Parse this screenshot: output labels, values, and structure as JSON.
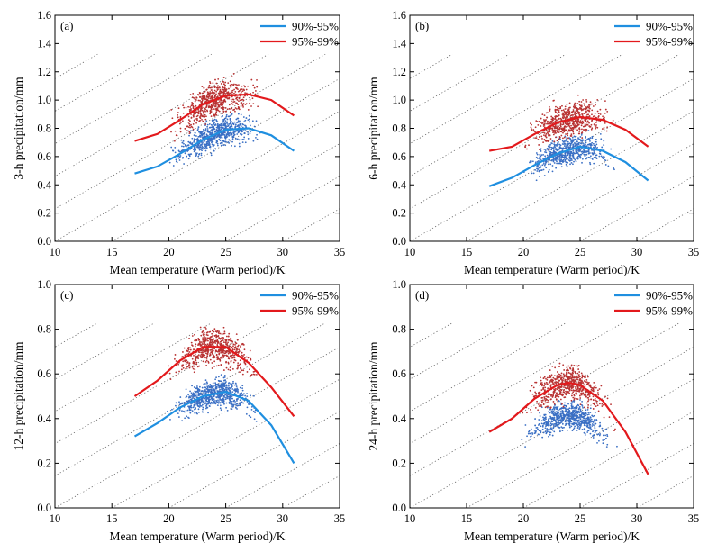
{
  "chart_data": [
    {
      "panel_label": "(a)",
      "type": "scatter",
      "xlabel": "Mean temperature (Warm period)/K",
      "ylabel": "3-h precipitation/mm",
      "xlim": [
        10,
        35
      ],
      "ylim": [
        0,
        1.6
      ],
      "xticks": [
        "10",
        "15",
        "20",
        "25",
        "30",
        "35"
      ],
      "yticks": [
        "0.0",
        "0.2",
        "0.4",
        "0.6",
        "0.8",
        "1.0",
        "1.2",
        "1.4",
        "1.6"
      ],
      "grid": "diagonal dotted lines",
      "legend_position": "top-right",
      "series": [
        {
          "name": "90%-95%",
          "color": "#1f8fe0",
          "kind": "fit-line",
          "x": [
            17,
            19,
            21,
            23,
            25,
            27,
            29,
            31
          ],
          "y": [
            0.48,
            0.53,
            0.62,
            0.72,
            0.79,
            0.8,
            0.75,
            0.64
          ]
        },
        {
          "name": "95%-99%",
          "color": "#e3191c",
          "kind": "fit-line",
          "x": [
            17,
            19,
            21,
            23,
            25,
            27,
            29,
            31
          ],
          "y": [
            0.71,
            0.76,
            0.86,
            0.97,
            1.03,
            1.04,
            1.0,
            0.89
          ]
        }
      ]
    },
    {
      "panel_label": "(b)",
      "type": "scatter",
      "xlabel": "Mean temperature (Warm period)/K",
      "ylabel": "6-h precipitation/mm",
      "xlim": [
        10,
        35
      ],
      "ylim": [
        0,
        1.6
      ],
      "xticks": [
        "10",
        "15",
        "20",
        "25",
        "30",
        "35"
      ],
      "yticks": [
        "0.0",
        "0.2",
        "0.4",
        "0.6",
        "0.8",
        "1.0",
        "1.2",
        "1.4",
        "1.6"
      ],
      "grid": "diagonal dotted lines",
      "legend_position": "top-right",
      "series": [
        {
          "name": "90%-95%",
          "color": "#1f8fe0",
          "kind": "fit-line",
          "x": [
            17,
            19,
            21,
            23,
            25,
            27,
            29,
            31
          ],
          "y": [
            0.39,
            0.45,
            0.54,
            0.62,
            0.67,
            0.64,
            0.56,
            0.43
          ]
        },
        {
          "name": "95%-99%",
          "color": "#e3191c",
          "kind": "fit-line",
          "x": [
            17,
            19,
            21,
            23,
            25,
            27,
            29,
            31
          ],
          "y": [
            0.64,
            0.67,
            0.76,
            0.84,
            0.88,
            0.86,
            0.79,
            0.67
          ]
        }
      ]
    },
    {
      "panel_label": "(c)",
      "type": "scatter",
      "xlabel": "Mean temperature (Warm period)/K",
      "ylabel": "12-h precipitation/mm",
      "xlim": [
        10,
        35
      ],
      "ylim": [
        0,
        1.0
      ],
      "xticks": [
        "10",
        "15",
        "20",
        "25",
        "30",
        "35"
      ],
      "yticks": [
        "0.0",
        "0.2",
        "0.4",
        "0.6",
        "0.8",
        "1.0"
      ],
      "grid": "diagonal dotted lines",
      "legend_position": "top-right",
      "series": [
        {
          "name": "90%-95%",
          "color": "#1f8fe0",
          "kind": "fit-line",
          "x": [
            17,
            19,
            21,
            23,
            25,
            27,
            29,
            31
          ],
          "y": [
            0.32,
            0.38,
            0.45,
            0.5,
            0.52,
            0.48,
            0.37,
            0.2
          ]
        },
        {
          "name": "95%-99%",
          "color": "#e3191c",
          "kind": "fit-line",
          "x": [
            17,
            19,
            21,
            23,
            25,
            27,
            29,
            31
          ],
          "y": [
            0.5,
            0.57,
            0.66,
            0.72,
            0.72,
            0.65,
            0.54,
            0.41
          ]
        }
      ]
    },
    {
      "panel_label": "(d)",
      "type": "scatter",
      "xlabel": "Mean temperature (Warm period)/K",
      "ylabel": "24-h precipitation/mm",
      "xlim": [
        10,
        35
      ],
      "ylim": [
        0,
        1.0
      ],
      "xticks": [
        "10",
        "15",
        "20",
        "25",
        "30",
        "35"
      ],
      "yticks": [
        "0.0",
        "0.2",
        "0.4",
        "0.6",
        "0.8",
        "1.0"
      ],
      "grid": "diagonal dotted lines",
      "legend_position": "top-right",
      "series": [
        {
          "name": "90%-95%",
          "color": "#1f8fe0",
          "kind": "scatter-only",
          "x": [],
          "y": []
        },
        {
          "name": "95%-99%",
          "color": "#e3191c",
          "kind": "fit-line",
          "x": [
            17,
            19,
            21,
            23,
            24,
            25,
            27,
            29,
            31
          ],
          "y": [
            0.34,
            0.4,
            0.49,
            0.55,
            0.56,
            0.55,
            0.48,
            0.34,
            0.15
          ]
        }
      ]
    }
  ]
}
